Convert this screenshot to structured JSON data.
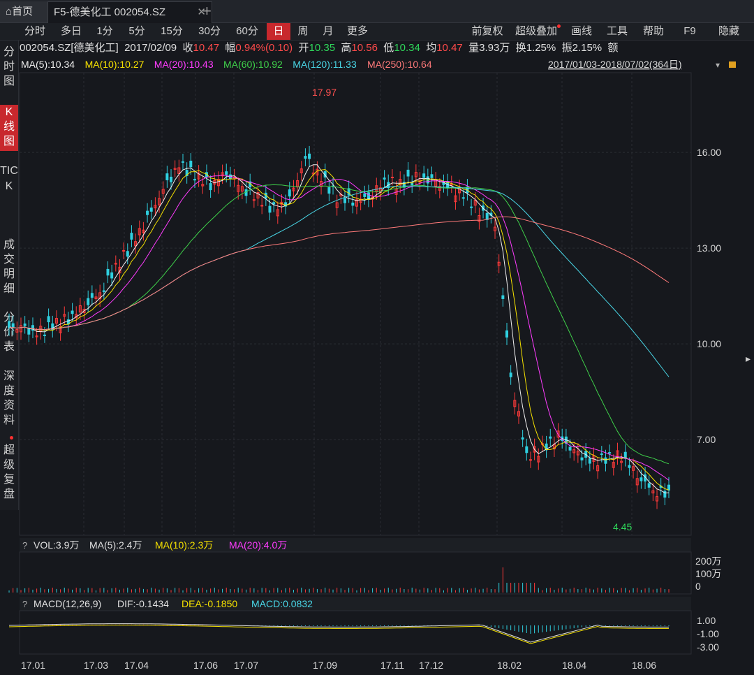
{
  "tabs": {
    "home": "首页",
    "stock": "F5-德美化工 002054.SZ",
    "close": "✕",
    "plus": "+"
  },
  "toolbar": {
    "left": [
      "分时",
      "多日",
      "1分",
      "5分",
      "15分",
      "30分",
      "60分",
      "日",
      "周",
      "月",
      "更多"
    ],
    "active": "日",
    "right": [
      "前复权",
      "超级叠加",
      "画线",
      "工具",
      "帮助",
      "F9",
      "隐藏"
    ]
  },
  "sidebar": [
    "分时图",
    "K线图",
    "TICK",
    "成交明细",
    "分价表",
    "深度资料",
    "超级复盘"
  ],
  "info": {
    "code": "002054.SZ[德美化工]",
    "date": "2017/02/09",
    "close_label": "收",
    "close": "10.47",
    "amp_label": "幅",
    "amp": "0.94%(0.10)",
    "open_label": "开",
    "open": "10.35",
    "high_label": "高",
    "high": "10.56",
    "low_label": "低",
    "low": "10.34",
    "avg_label": "均",
    "avg": "10.47",
    "vol_label": "量",
    "vol": "3.93万",
    "turn_label": "换",
    "turn": "1.25%",
    "swing_label": "振",
    "swing": "2.15%",
    "amount_label": "额"
  },
  "ma": [
    {
      "label": "MA(5):10.34",
      "color": "#f0f0f0"
    },
    {
      "label": "MA(10):10.27",
      "color": "#f5e100"
    },
    {
      "label": "MA(20):10.43",
      "color": "#ff3cff"
    },
    {
      "label": "MA(60):10.92",
      "color": "#3fd04a"
    },
    {
      "label": "MA(120):11.33",
      "color": "#49d6e6"
    },
    {
      "label": "MA(250):10.64",
      "color": "#ff7a7a"
    }
  ],
  "range": "2017/01/03-2018/07/02(364日)",
  "price_axis": [
    "16.00",
    "13.00",
    "10.00",
    "7.00"
  ],
  "high_mark": "17.97",
  "low_mark": "4.45",
  "vol": {
    "title": "VOL:3.9万",
    "ma5": "MA(5):2.4万",
    "ma10": "MA(10):2.3万",
    "ma20": "MA(20):4.0万",
    "axis": [
      "200万",
      "100万",
      "0"
    ]
  },
  "macd": {
    "title": "MACD(12,26,9)",
    "dif": "DIF:-0.1434",
    "dea": "DEA:-0.1850",
    "macd": "MACD:0.0832",
    "axis": [
      "1.00",
      "-1.00",
      "-3.00"
    ]
  },
  "x_axis": [
    "17.01",
    "17.03",
    "17.04",
    "17.06",
    "17.07",
    "17.09",
    "17.11",
    "17.12",
    "18.02",
    "18.04",
    "18.06"
  ],
  "colors": {
    "up": "#ff3a3a",
    "down": "#2fd0e0",
    "bg": "#16181d",
    "grid": "#2a2d33"
  },
  "chart_data": {
    "type": "candlestick",
    "ylim": [
      4.0,
      18.5
    ],
    "closes_weekly": [
      10.5,
      10.3,
      10.6,
      10.8,
      11.2,
      11.6,
      12.4,
      13.1,
      13.9,
      14.8,
      15.6,
      15.3,
      15.0,
      15.4,
      14.9,
      14.6,
      14.2,
      14.5,
      15.8,
      15.2,
      14.6,
      14.5,
      14.6,
      15.1,
      15.0,
      15.2,
      15.1,
      14.9,
      14.7,
      14.2,
      13.8,
      9.0,
      6.5,
      6.7,
      7.1,
      6.6,
      6.3,
      6.4,
      6.5,
      5.9,
      5.4,
      5.3
    ]
  }
}
